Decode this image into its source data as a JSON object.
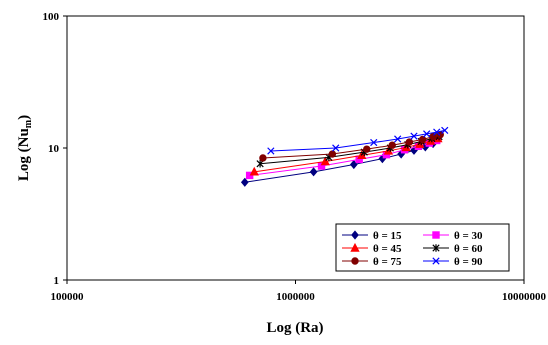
{
  "chart_data": {
    "type": "scatter",
    "xlabel": "Log (Ra)",
    "ylabel_main": "Log (Nu",
    "ylabel_sub": "m",
    "ylabel_close": ")",
    "xscale": "log",
    "yscale": "log",
    "xlim": [
      100000,
      10000000
    ],
    "ylim": [
      1,
      100
    ],
    "x_ticks": [
      {
        "value": 100000,
        "label": "100000"
      },
      {
        "value": 1000000,
        "label": "1000000"
      },
      {
        "value": 10000000,
        "label": "10000000"
      }
    ],
    "y_ticks": [
      {
        "value": 1,
        "label": "1"
      },
      {
        "value": 10,
        "label": "10"
      },
      {
        "value": 100,
        "label": "100"
      }
    ],
    "grid": false,
    "legend_position": "bottom-right",
    "series": [
      {
        "name": "θ = 15",
        "color": "#000080",
        "marker": "diamond",
        "points": [
          [
            600000,
            5.5
          ],
          [
            1200000,
            6.6
          ],
          [
            1800000,
            7.5
          ],
          [
            2400000,
            8.3
          ],
          [
            2900000,
            9.0
          ],
          [
            3300000,
            9.6
          ],
          [
            3700000,
            10.2
          ],
          [
            4000000,
            10.8
          ]
        ]
      },
      {
        "name": "θ = 30",
        "color": "#FF00FF",
        "marker": "square",
        "points": [
          [
            630000,
            6.2
          ],
          [
            1300000,
            7.3
          ],
          [
            1900000,
            8.2
          ],
          [
            2500000,
            8.9
          ],
          [
            3000000,
            9.7
          ],
          [
            3450000,
            10.3
          ],
          [
            3850000,
            10.9
          ],
          [
            4150000,
            11.4
          ]
        ]
      },
      {
        "name": "θ = 45",
        "color": "#FF0000",
        "marker": "triangle",
        "points": [
          [
            660000,
            6.6
          ],
          [
            1350000,
            7.9
          ],
          [
            1950000,
            8.8
          ],
          [
            2550000,
            9.5
          ],
          [
            3050000,
            10.1
          ],
          [
            3500000,
            10.7
          ],
          [
            3900000,
            11.3
          ],
          [
            4200000,
            11.8
          ]
        ]
      },
      {
        "name": "θ = 60",
        "color": "#000000",
        "marker": "star",
        "points": [
          [
            700000,
            7.6
          ],
          [
            1400000,
            8.5
          ],
          [
            2000000,
            9.3
          ],
          [
            2600000,
            10.0
          ],
          [
            3100000,
            10.6
          ],
          [
            3550000,
            11.2
          ],
          [
            3950000,
            11.8
          ],
          [
            4250000,
            12.2
          ]
        ]
      },
      {
        "name": "θ = 75",
        "color": "#800000",
        "marker": "circle",
        "points": [
          [
            720000,
            8.4
          ],
          [
            1450000,
            9.0
          ],
          [
            2050000,
            9.8
          ],
          [
            2650000,
            10.5
          ],
          [
            3150000,
            11.1
          ],
          [
            3600000,
            11.6
          ],
          [
            4000000,
            12.2
          ],
          [
            4300000,
            12.6
          ]
        ]
      },
      {
        "name": "θ = 90",
        "color": "#0000FF",
        "marker": "x",
        "points": [
          [
            780000,
            9.5
          ],
          [
            1500000,
            10.0
          ],
          [
            2200000,
            11.0
          ],
          [
            2800000,
            11.7
          ],
          [
            3300000,
            12.3
          ],
          [
            3750000,
            12.8
          ],
          [
            4150000,
            13.2
          ],
          [
            4500000,
            13.6
          ]
        ]
      }
    ]
  }
}
